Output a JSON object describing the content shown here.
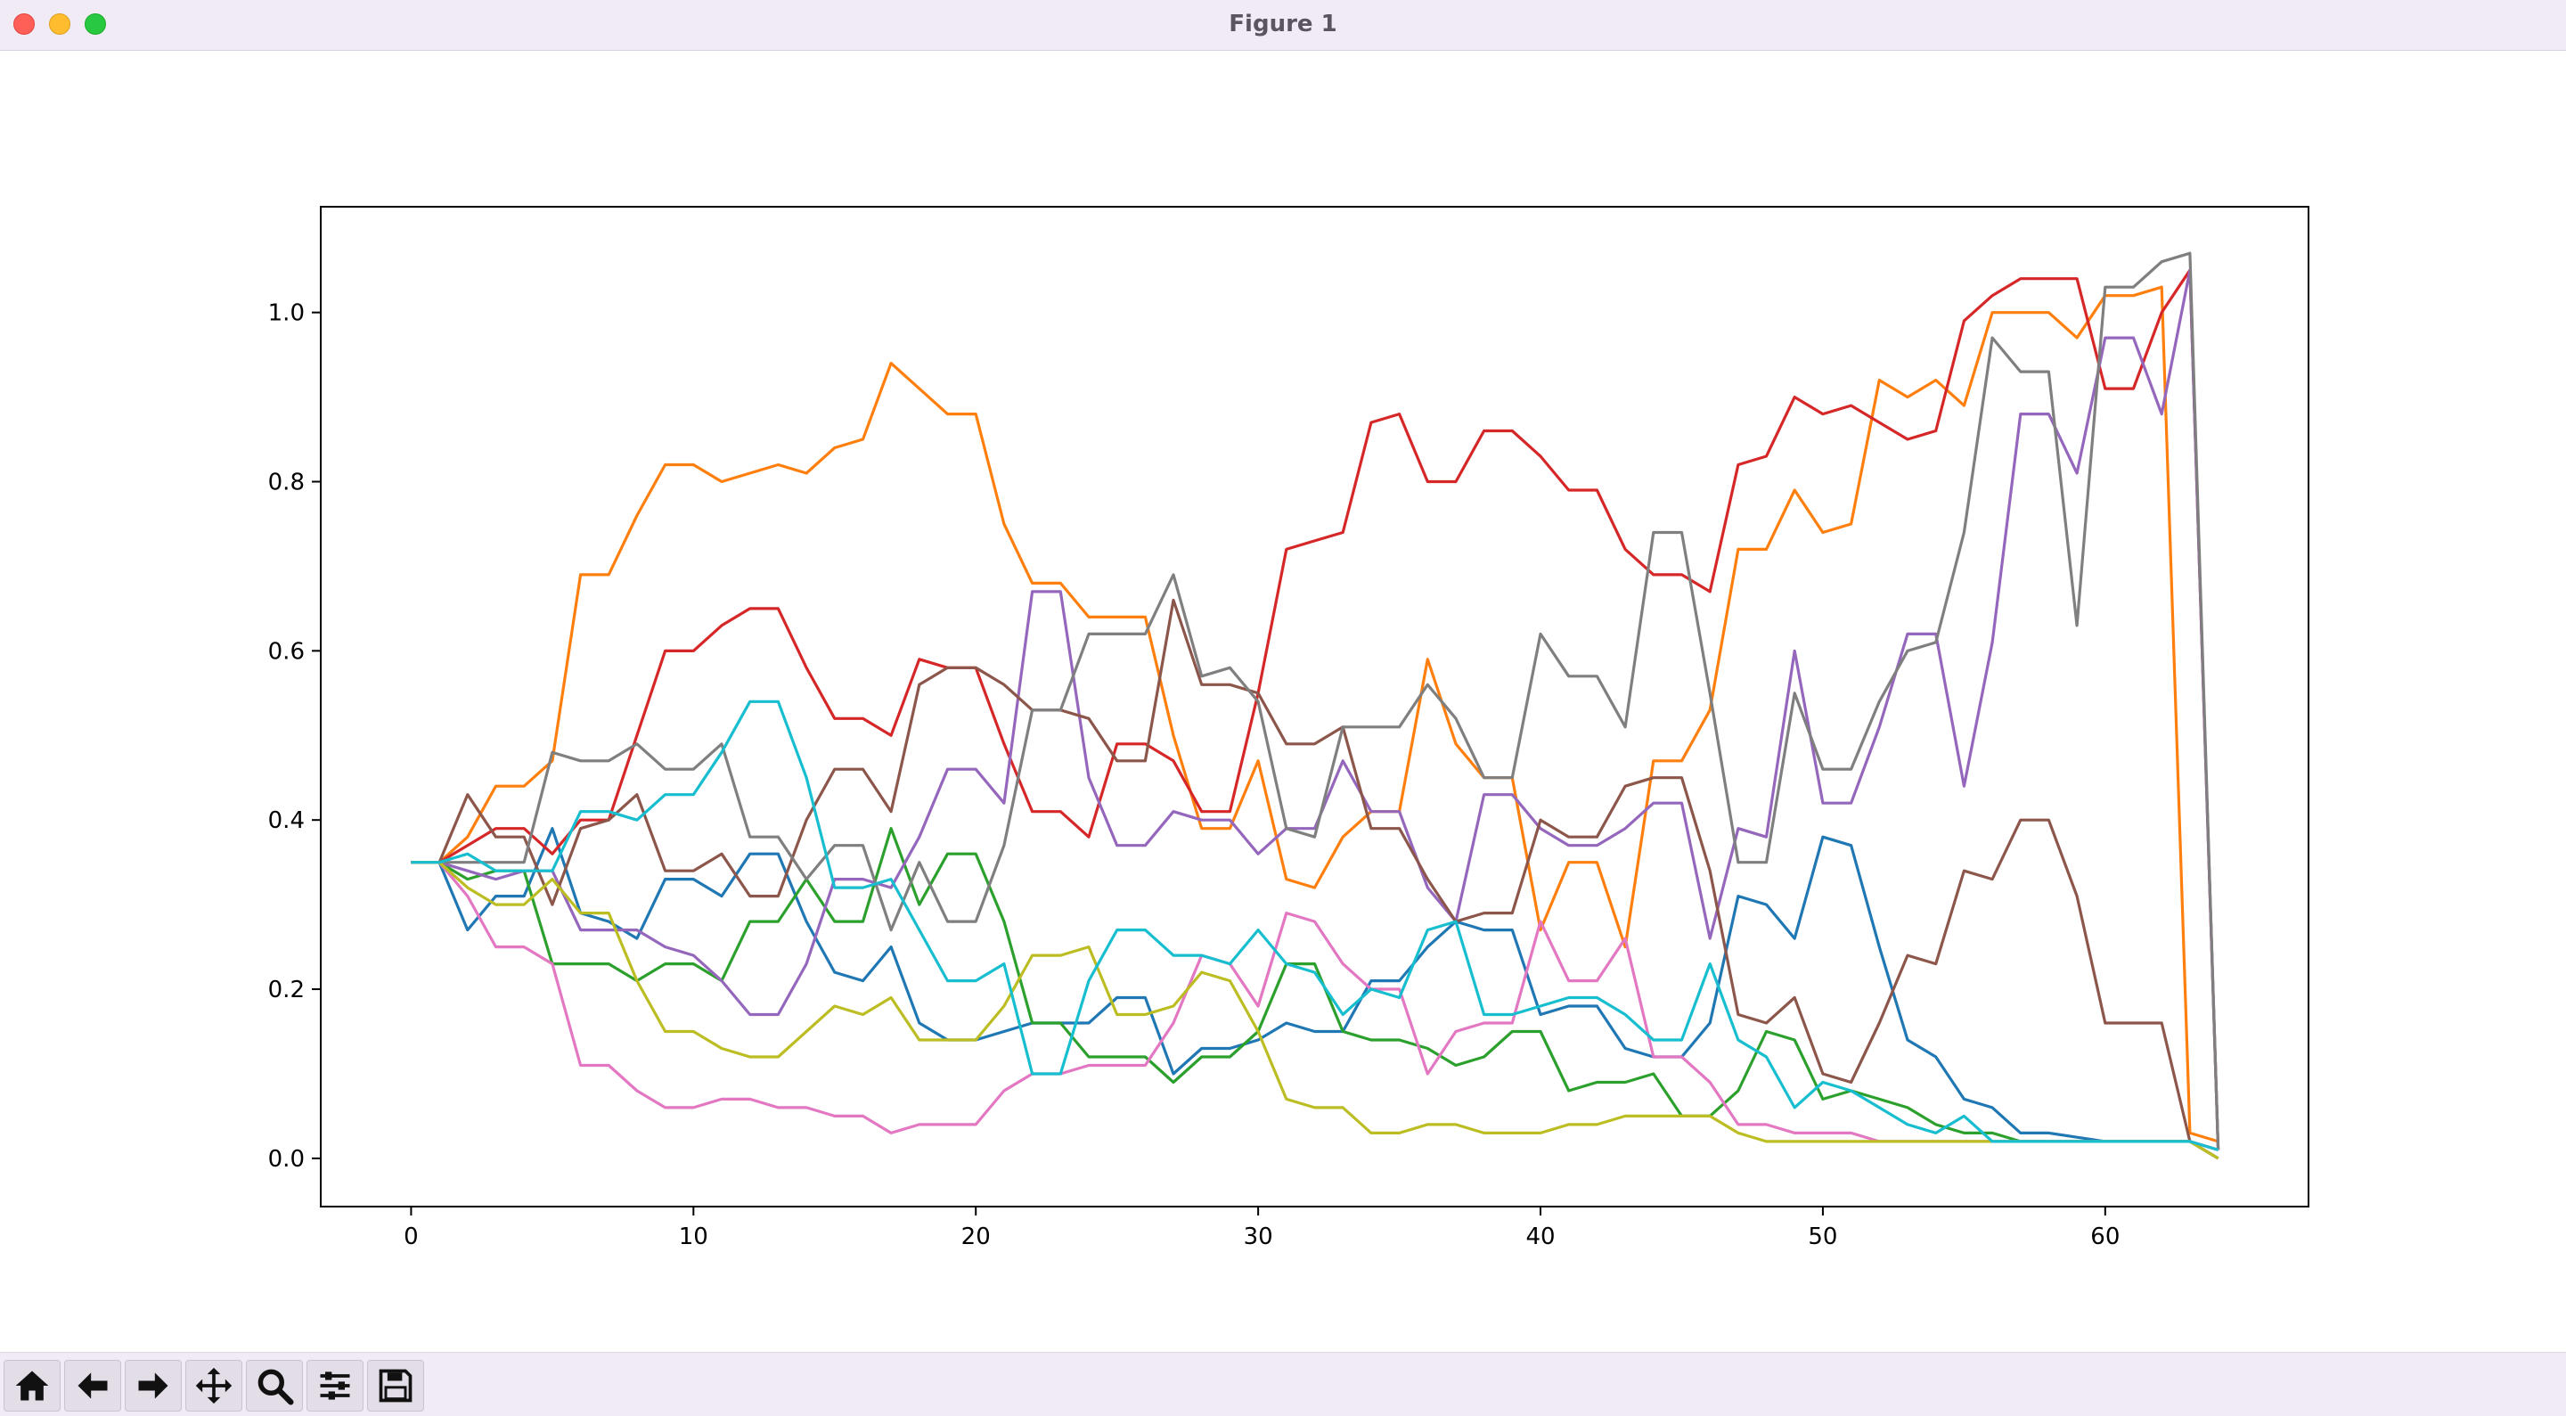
{
  "window": {
    "title": "Figure 1"
  },
  "toolbar": {
    "buttons": [
      {
        "name": "home-button",
        "icon": "home-icon"
      },
      {
        "name": "back-button",
        "icon": "arrow-left-icon"
      },
      {
        "name": "forward-button",
        "icon": "arrow-right-icon"
      },
      {
        "name": "pan-button",
        "icon": "move-icon"
      },
      {
        "name": "zoom-button",
        "icon": "magnifier-icon"
      },
      {
        "name": "configure-subplots-button",
        "icon": "sliders-icon"
      },
      {
        "name": "save-button",
        "icon": "floppy-disk-icon"
      }
    ]
  },
  "chart_data": {
    "type": "line",
    "title": "",
    "xlabel": "",
    "ylabel": "",
    "xlim": [
      -3.2,
      67.2
    ],
    "ylim": [
      -0.057,
      1.125
    ],
    "xticks": [
      0,
      10,
      20,
      30,
      40,
      50,
      60
    ],
    "yticks": [
      0.0,
      0.2,
      0.4,
      0.6,
      0.8,
      1.0
    ],
    "xtick_labels": [
      "0",
      "10",
      "20",
      "30",
      "40",
      "50",
      "60"
    ],
    "ytick_labels": [
      "0.0",
      "0.2",
      "0.4",
      "0.6",
      "0.8",
      "1.0"
    ],
    "grid": false,
    "legend": "none",
    "x": [
      0,
      1,
      2,
      3,
      4,
      5,
      6,
      7,
      8,
      9,
      10,
      11,
      12,
      13,
      14,
      15,
      16,
      17,
      18,
      19,
      20,
      21,
      22,
      23,
      24,
      25,
      26,
      27,
      28,
      29,
      30,
      31,
      32,
      33,
      34,
      35,
      36,
      37,
      38,
      39,
      40,
      41,
      42,
      43,
      44,
      45,
      46,
      47,
      48,
      49,
      50,
      51,
      52,
      53,
      54,
      55,
      56,
      57,
      58,
      59,
      60,
      61,
      62,
      63,
      64
    ],
    "series": [
      {
        "color": "#1f77b4",
        "values": [
          0.35,
          0.35,
          0.27,
          0.31,
          0.31,
          0.39,
          0.29,
          0.28,
          0.26,
          0.33,
          0.33,
          0.31,
          0.36,
          0.36,
          0.28,
          0.22,
          0.21,
          0.25,
          0.16,
          0.14,
          0.14,
          0.15,
          0.16,
          0.16,
          0.16,
          0.19,
          0.19,
          0.1,
          0.13,
          0.13,
          0.14,
          0.16,
          0.15,
          0.15,
          0.21,
          0.21,
          0.25,
          0.28,
          0.27,
          0.27,
          0.17,
          0.18,
          0.18,
          0.13,
          0.12,
          0.12,
          0.16,
          0.31,
          0.3,
          0.26,
          0.38,
          0.37,
          0.25,
          0.14,
          0.12,
          0.07,
          0.06,
          0.03,
          0.03,
          0.025,
          0.02,
          0.02,
          0.02,
          0.02,
          0.01
        ]
      },
      {
        "color": "#ff7f0e",
        "values": [
          0.35,
          0.35,
          0.38,
          0.44,
          0.44,
          0.47,
          0.69,
          0.69,
          0.76,
          0.82,
          0.82,
          0.8,
          0.81,
          0.82,
          0.81,
          0.84,
          0.85,
          0.94,
          0.91,
          0.88,
          0.88,
          0.75,
          0.68,
          0.68,
          0.64,
          0.64,
          0.64,
          0.5,
          0.39,
          0.39,
          0.47,
          0.33,
          0.32,
          0.38,
          0.41,
          0.41,
          0.59,
          0.49,
          0.45,
          0.45,
          0.27,
          0.35,
          0.35,
          0.25,
          0.47,
          0.47,
          0.53,
          0.72,
          0.72,
          0.79,
          0.74,
          0.75,
          0.92,
          0.9,
          0.92,
          0.89,
          1.0,
          1.0,
          1.0,
          0.97,
          1.02,
          1.02,
          1.03,
          0.03,
          0.02
        ]
      },
      {
        "color": "#2ca02c",
        "values": [
          0.35,
          0.35,
          0.33,
          0.34,
          0.34,
          0.23,
          0.23,
          0.23,
          0.21,
          0.23,
          0.23,
          0.21,
          0.28,
          0.28,
          0.33,
          0.28,
          0.28,
          0.39,
          0.3,
          0.36,
          0.36,
          0.28,
          0.16,
          0.16,
          0.12,
          0.12,
          0.12,
          0.09,
          0.12,
          0.12,
          0.15,
          0.23,
          0.23,
          0.15,
          0.14,
          0.14,
          0.13,
          0.11,
          0.12,
          0.15,
          0.15,
          0.08,
          0.09,
          0.09,
          0.1,
          0.05,
          0.05,
          0.08,
          0.15,
          0.14,
          0.07,
          0.08,
          0.07,
          0.06,
          0.04,
          0.03,
          0.03,
          0.02,
          0.02,
          0.02,
          0.02,
          0.02,
          0.02,
          0.02,
          0.0
        ]
      },
      {
        "color": "#d62728",
        "values": [
          0.35,
          0.35,
          0.37,
          0.39,
          0.39,
          0.36,
          0.4,
          0.4,
          0.5,
          0.6,
          0.6,
          0.63,
          0.65,
          0.65,
          0.58,
          0.52,
          0.52,
          0.5,
          0.59,
          0.58,
          0.58,
          0.49,
          0.41,
          0.41,
          0.38,
          0.49,
          0.49,
          0.47,
          0.41,
          0.41,
          0.55,
          0.72,
          0.73,
          0.74,
          0.87,
          0.88,
          0.8,
          0.8,
          0.86,
          0.86,
          0.83,
          0.79,
          0.79,
          0.72,
          0.69,
          0.69,
          0.67,
          0.82,
          0.83,
          0.9,
          0.88,
          0.89,
          0.87,
          0.85,
          0.86,
          0.99,
          1.02,
          1.04,
          1.04,
          1.04,
          0.91,
          0.91,
          1.0,
          1.05,
          0.01
        ]
      },
      {
        "color": "#9467bd",
        "values": [
          0.35,
          0.35,
          0.34,
          0.33,
          0.34,
          0.34,
          0.27,
          0.27,
          0.27,
          0.25,
          0.24,
          0.21,
          0.17,
          0.17,
          0.23,
          0.33,
          0.33,
          0.32,
          0.38,
          0.46,
          0.46,
          0.42,
          0.67,
          0.67,
          0.45,
          0.37,
          0.37,
          0.41,
          0.4,
          0.4,
          0.36,
          0.39,
          0.39,
          0.47,
          0.41,
          0.41,
          0.32,
          0.28,
          0.43,
          0.43,
          0.39,
          0.37,
          0.37,
          0.39,
          0.42,
          0.42,
          0.26,
          0.39,
          0.38,
          0.6,
          0.42,
          0.42,
          0.51,
          0.62,
          0.62,
          0.44,
          0.61,
          0.88,
          0.88,
          0.81,
          0.97,
          0.97,
          0.88,
          1.05,
          0.01
        ]
      },
      {
        "color": "#8c564b",
        "values": [
          0.35,
          0.35,
          0.43,
          0.38,
          0.38,
          0.3,
          0.39,
          0.4,
          0.43,
          0.34,
          0.34,
          0.36,
          0.31,
          0.31,
          0.4,
          0.46,
          0.46,
          0.41,
          0.56,
          0.58,
          0.58,
          0.56,
          0.53,
          0.53,
          0.52,
          0.47,
          0.47,
          0.66,
          0.56,
          0.56,
          0.55,
          0.49,
          0.49,
          0.51,
          0.39,
          0.39,
          0.33,
          0.28,
          0.29,
          0.29,
          0.4,
          0.38,
          0.38,
          0.44,
          0.45,
          0.45,
          0.34,
          0.17,
          0.16,
          0.19,
          0.1,
          0.09,
          0.16,
          0.24,
          0.23,
          0.34,
          0.33,
          0.4,
          0.4,
          0.31,
          0.16,
          0.16,
          0.16,
          0.02,
          0.0
        ]
      },
      {
        "color": "#e377c2",
        "values": [
          0.35,
          0.35,
          0.31,
          0.25,
          0.25,
          0.23,
          0.11,
          0.11,
          0.08,
          0.06,
          0.06,
          0.07,
          0.07,
          0.06,
          0.06,
          0.05,
          0.05,
          0.03,
          0.04,
          0.04,
          0.04,
          0.08,
          0.1,
          0.1,
          0.11,
          0.11,
          0.11,
          0.16,
          0.24,
          0.23,
          0.18,
          0.29,
          0.28,
          0.23,
          0.2,
          0.2,
          0.1,
          0.15,
          0.16,
          0.16,
          0.28,
          0.21,
          0.21,
          0.26,
          0.12,
          0.12,
          0.09,
          0.04,
          0.04,
          0.03,
          0.03,
          0.03,
          0.02,
          0.02,
          0.02,
          0.02,
          0.02,
          0.02,
          0.02,
          0.02,
          0.02,
          0.02,
          0.02,
          0.02,
          0.01
        ]
      },
      {
        "color": "#7f7f7f",
        "values": [
          0.35,
          0.35,
          0.35,
          0.35,
          0.35,
          0.48,
          0.47,
          0.47,
          0.49,
          0.46,
          0.46,
          0.49,
          0.38,
          0.38,
          0.33,
          0.37,
          0.37,
          0.27,
          0.35,
          0.28,
          0.28,
          0.37,
          0.53,
          0.53,
          0.62,
          0.62,
          0.62,
          0.69,
          0.57,
          0.58,
          0.54,
          0.39,
          0.38,
          0.51,
          0.51,
          0.51,
          0.56,
          0.52,
          0.45,
          0.45,
          0.62,
          0.57,
          0.57,
          0.51,
          0.74,
          0.74,
          0.55,
          0.35,
          0.35,
          0.55,
          0.46,
          0.46,
          0.54,
          0.6,
          0.61,
          0.74,
          0.97,
          0.93,
          0.93,
          0.63,
          1.03,
          1.03,
          1.06,
          1.07,
          0.01
        ]
      },
      {
        "color": "#bcbd22",
        "values": [
          0.35,
          0.35,
          0.32,
          0.3,
          0.3,
          0.33,
          0.29,
          0.29,
          0.21,
          0.15,
          0.15,
          0.13,
          0.12,
          0.12,
          0.15,
          0.18,
          0.17,
          0.19,
          0.14,
          0.14,
          0.14,
          0.18,
          0.24,
          0.24,
          0.25,
          0.17,
          0.17,
          0.18,
          0.22,
          0.21,
          0.15,
          0.07,
          0.06,
          0.06,
          0.03,
          0.03,
          0.04,
          0.04,
          0.03,
          0.03,
          0.03,
          0.04,
          0.04,
          0.05,
          0.05,
          0.05,
          0.05,
          0.03,
          0.02,
          0.02,
          0.02,
          0.02,
          0.02,
          0.02,
          0.02,
          0.02,
          0.02,
          0.02,
          0.02,
          0.02,
          0.02,
          0.02,
          0.02,
          0.02,
          0.0
        ]
      },
      {
        "color": "#17becf",
        "values": [
          0.35,
          0.35,
          0.36,
          0.34,
          0.34,
          0.34,
          0.41,
          0.41,
          0.4,
          0.43,
          0.43,
          0.48,
          0.54,
          0.54,
          0.45,
          0.32,
          0.32,
          0.33,
          0.27,
          0.21,
          0.21,
          0.23,
          0.1,
          0.1,
          0.21,
          0.27,
          0.27,
          0.24,
          0.24,
          0.23,
          0.27,
          0.23,
          0.22,
          0.17,
          0.2,
          0.19,
          0.27,
          0.28,
          0.17,
          0.17,
          0.18,
          0.19,
          0.19,
          0.17,
          0.14,
          0.14,
          0.23,
          0.14,
          0.12,
          0.06,
          0.09,
          0.08,
          0.06,
          0.04,
          0.03,
          0.05,
          0.02,
          0.02,
          0.02,
          0.02,
          0.02,
          0.02,
          0.02,
          0.02,
          0.01
        ]
      }
    ]
  }
}
